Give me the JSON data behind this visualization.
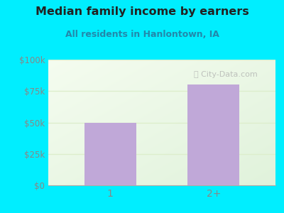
{
  "title": "Median family income by earners",
  "subtitle": "All residents in Hanlontown, IA",
  "categories": [
    "1",
    "2+"
  ],
  "values": [
    50000,
    80000
  ],
  "bar_color": "#c0a8d8",
  "ylim": [
    0,
    100000
  ],
  "yticks": [
    0,
    25000,
    50000,
    75000,
    100000
  ],
  "ytick_labels": [
    "$0",
    "$25k",
    "$50k",
    "$75k",
    "$100k"
  ],
  "bg_outer": "#00eeff",
  "bg_plot_topleft": "#e8f5e8",
  "bg_plot_bottomright": "#f8faf5",
  "title_color": "#222222",
  "subtitle_color": "#2288aa",
  "tick_color": "#888888",
  "grid_color": "#ddeecc",
  "watermark": "City-Data.com",
  "bar_width": 0.5
}
